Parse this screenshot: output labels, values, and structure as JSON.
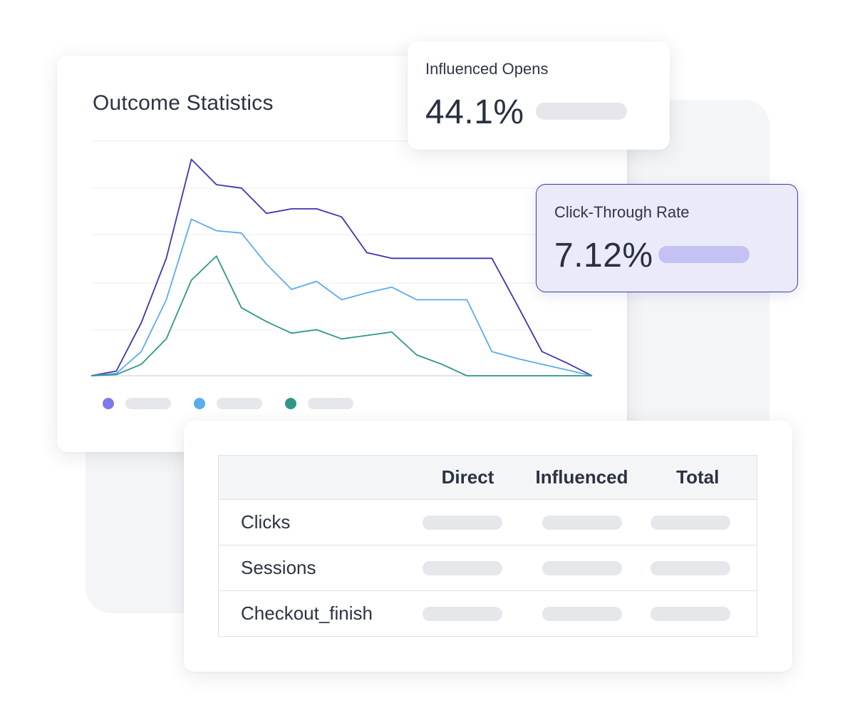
{
  "chart_card": {
    "title": "Outcome Statistics"
  },
  "chart_data": {
    "type": "line",
    "title": "Outcome Statistics",
    "xlabel": "",
    "ylabel": "",
    "ylim": [
      0,
      100
    ],
    "grid": true,
    "x": [
      0,
      1,
      2,
      3,
      4,
      5,
      6,
      7,
      8,
      9,
      10,
      11,
      12,
      13,
      14,
      15,
      16,
      17,
      18,
      19,
      20
    ],
    "series": [
      {
        "name": "",
        "color": "#3b35b0",
        "values": [
          0,
          2,
          23,
          51,
          94,
          83,
          81.5,
          70.5,
          72.5,
          72.5,
          69,
          53.5,
          51,
          51,
          51,
          51,
          51,
          31,
          10.5,
          5.5,
          0
        ]
      },
      {
        "name": "",
        "color": "#5aacef",
        "values": [
          0,
          1,
          10.5,
          33,
          68,
          63,
          62,
          48.5,
          37.5,
          41,
          33,
          36,
          38.5,
          33,
          33,
          33,
          10.5,
          7.5,
          5,
          2.5,
          0
        ]
      },
      {
        "name": "",
        "color": "#2f9688",
        "values": [
          0,
          0.5,
          5,
          16,
          41.5,
          52,
          29.5,
          23.5,
          18.5,
          20,
          16,
          17.5,
          19,
          9,
          5,
          0,
          0,
          0,
          0,
          0,
          0
        ]
      }
    ],
    "legend_position": "bottom-left",
    "legend_colors": [
      "#8077eb",
      "#5aacef",
      "#2f9688"
    ]
  },
  "influenced_opens": {
    "label": "Influenced Opens",
    "value": "44.1%"
  },
  "click_through": {
    "label": "Click-Through Rate",
    "value": "7.12%"
  },
  "table": {
    "headers": [
      "",
      "Direct",
      "Influenced",
      "Total"
    ],
    "rows": [
      {
        "label": "Clicks"
      },
      {
        "label": "Sessions"
      },
      {
        "label": "Checkout_finish"
      }
    ]
  },
  "colors": {
    "accent": "#3f3ca8",
    "highlight_bg": "#ebeafb",
    "placeholder": "#e5e7ea",
    "panel_bg": "#f4f5f7"
  }
}
